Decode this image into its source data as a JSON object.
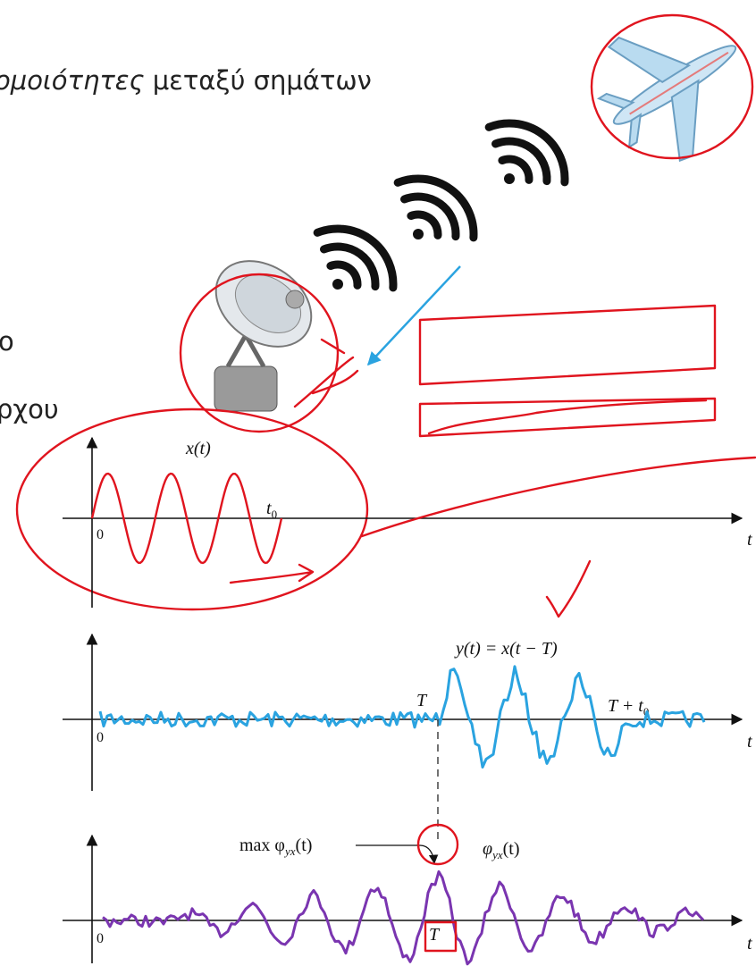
{
  "slide": {
    "title_italic": "ομοιότητες",
    "title_rest": "μεταξύ σημάτων",
    "side_text_1": "ο",
    "side_text_2": "ρχου",
    "plot1": {
      "label": "x(t)",
      "t0_base": "t",
      "t0_sub": "0",
      "origin": "0",
      "axis": "t"
    },
    "plot2": {
      "label": "y(t) = x(t − T)",
      "delay": "T",
      "end_base": "T + t",
      "end_sub": "0",
      "origin": "0",
      "axis": "t"
    },
    "plot3": {
      "max_base": "max φ",
      "max_sub": "yx",
      "max_tail": "(t)",
      "label_base": "φ",
      "label_sub": "yx",
      "label_tail": "(t)",
      "peak": "T",
      "origin": "0",
      "axis": "t"
    }
  }
}
